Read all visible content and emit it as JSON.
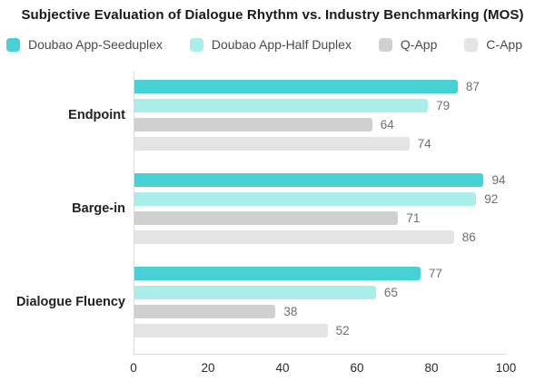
{
  "chart_data": {
    "type": "bar",
    "orientation": "horizontal",
    "title": "Subjective Evaluation of Dialogue Rhythm vs. Industry Benchmarking (MOS)",
    "categories": [
      "Endpoint",
      "Barge-in",
      "Dialogue Fluency"
    ],
    "series": [
      {
        "name": "Doubao App-Seeduplex",
        "color": "#48D1D5",
        "values": [
          87,
          94,
          77
        ]
      },
      {
        "name": "Doubao App-Half Duplex",
        "color": "#ABEDE9",
        "values": [
          79,
          92,
          65
        ]
      },
      {
        "name": "Q-App",
        "color": "#D0D0D0",
        "values": [
          64,
          71,
          38
        ]
      },
      {
        "name": "C-App",
        "color": "#E4E4E4",
        "values": [
          74,
          86,
          52
        ]
      }
    ],
    "xlim": [
      0,
      100
    ],
    "xticks": [
      0,
      20,
      40,
      60,
      80,
      100
    ],
    "xlabel": "",
    "ylabel": "",
    "grid": false,
    "legend_position": "top",
    "value_labels": true,
    "axis_color": "#dbdbdb",
    "value_label_color": "#6f6f6f"
  }
}
